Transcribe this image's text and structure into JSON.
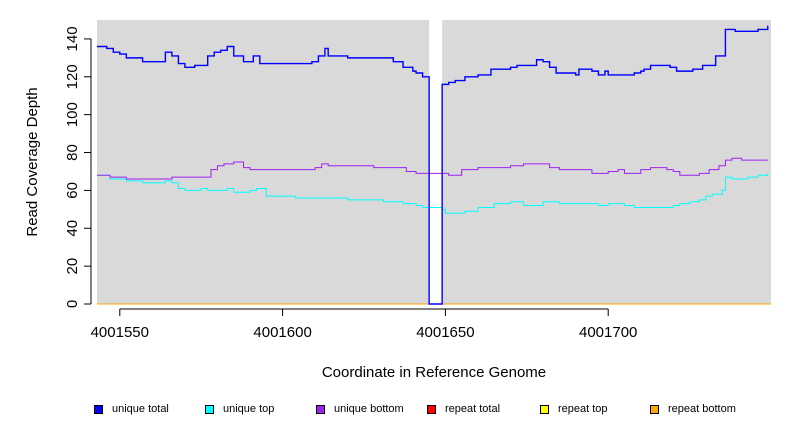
{
  "chart_data": {
    "type": "line",
    "title": "",
    "xlabel": "Coordinate in Reference Genome",
    "ylabel": "Read Coverage Depth",
    "xlim": [
      4001543,
      4001750
    ],
    "ylim": [
      0,
      150
    ],
    "xticks": [
      4001550,
      4001600,
      4001650,
      4001700
    ],
    "yticks": [
      0,
      20,
      40,
      60,
      80,
      100,
      120,
      140
    ],
    "grid": false,
    "background": "#d9d9d9",
    "legend_position": "bottom",
    "gap_region": [
      4001645,
      4001649
    ],
    "series": [
      {
        "name": "unique total",
        "color": "#0000ff",
        "points": [
          [
            4001543,
            136
          ],
          [
            4001546,
            135
          ],
          [
            4001548,
            133
          ],
          [
            4001550,
            132
          ],
          [
            4001552,
            130
          ],
          [
            4001557,
            128
          ],
          [
            4001564,
            133
          ],
          [
            4001566,
            131
          ],
          [
            4001568,
            127
          ],
          [
            4001570,
            125
          ],
          [
            4001573,
            126
          ],
          [
            4001577,
            131
          ],
          [
            4001579,
            133
          ],
          [
            4001581,
            134
          ],
          [
            4001583,
            136
          ],
          [
            4001585,
            131
          ],
          [
            4001588,
            128
          ],
          [
            4001591,
            131
          ],
          [
            4001593,
            127
          ],
          [
            4001604,
            127
          ],
          [
            4001609,
            128
          ],
          [
            4001611,
            131
          ],
          [
            4001613,
            135
          ],
          [
            4001614,
            131
          ],
          [
            4001620,
            130
          ],
          [
            4001624,
            130
          ],
          [
            4001634,
            128
          ],
          [
            4001637,
            125
          ],
          [
            4001640,
            123
          ],
          [
            4001641,
            122
          ],
          [
            4001643,
            120
          ],
          [
            4001645,
            120
          ],
          [
            4001645,
            0
          ],
          [
            4001649,
            0
          ],
          [
            4001649,
            116
          ],
          [
            4001651,
            117
          ],
          [
            4001653,
            118
          ],
          [
            4001656,
            120
          ],
          [
            4001660,
            121
          ],
          [
            4001664,
            124
          ],
          [
            4001670,
            125
          ],
          [
            4001672,
            126
          ],
          [
            4001678,
            129
          ],
          [
            4001680,
            128
          ],
          [
            4001682,
            125
          ],
          [
            4001684,
            122
          ],
          [
            4001690,
            121
          ],
          [
            4001691,
            124
          ],
          [
            4001695,
            123
          ],
          [
            4001697,
            121
          ],
          [
            4001699,
            123
          ],
          [
            4001700,
            121
          ],
          [
            4001708,
            122
          ],
          [
            4001710,
            123
          ],
          [
            4001711,
            124
          ],
          [
            4001713,
            126
          ],
          [
            4001719,
            125
          ],
          [
            4001721,
            123
          ],
          [
            4001726,
            124
          ],
          [
            4001729,
            126
          ],
          [
            4001733,
            131
          ],
          [
            4001736,
            145
          ],
          [
            4001739,
            144
          ],
          [
            4001746,
            145
          ],
          [
            4001749,
            147
          ]
        ]
      },
      {
        "name": "unique top",
        "color": "#00ffff",
        "points": [
          [
            4001543,
            68
          ],
          [
            4001547,
            66
          ],
          [
            4001550,
            66
          ],
          [
            4001552,
            65
          ],
          [
            4001557,
            64
          ],
          [
            4001564,
            65
          ],
          [
            4001566,
            64
          ],
          [
            4001568,
            61
          ],
          [
            4001570,
            60
          ],
          [
            4001575,
            61
          ],
          [
            4001577,
            60
          ],
          [
            4001583,
            61
          ],
          [
            4001585,
            59
          ],
          [
            4001590,
            60
          ],
          [
            4001592,
            61
          ],
          [
            4001595,
            57
          ],
          [
            4001600,
            57
          ],
          [
            4001604,
            56
          ],
          [
            4001609,
            56
          ],
          [
            4001615,
            56
          ],
          [
            4001620,
            55
          ],
          [
            4001627,
            55
          ],
          [
            4001631,
            54
          ],
          [
            4001637,
            53
          ],
          [
            4001641,
            52
          ],
          [
            4001643,
            51
          ],
          [
            4001645,
            51
          ],
          [
            4001649,
            50
          ],
          [
            4001650,
            48
          ],
          [
            4001653,
            48
          ],
          [
            4001656,
            49
          ],
          [
            4001660,
            51
          ],
          [
            4001665,
            53
          ],
          [
            4001670,
            54
          ],
          [
            4001674,
            52
          ],
          [
            4001677,
            52
          ],
          [
            4001680,
            54
          ],
          [
            4001682,
            54
          ],
          [
            4001685,
            53
          ],
          [
            4001690,
            53
          ],
          [
            4001695,
            53
          ],
          [
            4001697,
            52
          ],
          [
            4001700,
            53
          ],
          [
            4001705,
            52
          ],
          [
            4001708,
            51
          ],
          [
            4001712,
            51
          ],
          [
            4001715,
            51
          ],
          [
            4001720,
            52
          ],
          [
            4001722,
            53
          ],
          [
            4001725,
            54
          ],
          [
            4001728,
            55
          ],
          [
            4001730,
            57
          ],
          [
            4001732,
            58
          ],
          [
            4001735,
            60
          ],
          [
            4001736,
            67
          ],
          [
            4001738,
            66
          ],
          [
            4001743,
            67
          ],
          [
            4001746,
            68
          ],
          [
            4001749,
            69
          ]
        ]
      },
      {
        "name": "unique bottom",
        "color": "#a020f0",
        "points": [
          [
            4001543,
            68
          ],
          [
            4001547,
            67
          ],
          [
            4001549,
            67
          ],
          [
            4001552,
            66
          ],
          [
            4001557,
            66
          ],
          [
            4001564,
            66
          ],
          [
            4001566,
            67
          ],
          [
            4001570,
            67
          ],
          [
            4001578,
            71
          ],
          [
            4001580,
            73
          ],
          [
            4001582,
            74
          ],
          [
            4001585,
            75
          ],
          [
            4001588,
            72
          ],
          [
            4001590,
            71
          ],
          [
            4001595,
            71
          ],
          [
            4001600,
            71
          ],
          [
            4001608,
            71
          ],
          [
            4001610,
            72
          ],
          [
            4001612,
            74
          ],
          [
            4001614,
            73
          ],
          [
            4001621,
            73
          ],
          [
            4001628,
            72
          ],
          [
            4001634,
            72
          ],
          [
            4001638,
            70
          ],
          [
            4001641,
            69
          ],
          [
            4001643,
            69
          ],
          [
            4001645,
            69
          ],
          [
            4001649,
            69
          ],
          [
            4001651,
            68
          ],
          [
            4001655,
            71
          ],
          [
            4001660,
            72
          ],
          [
            4001665,
            72
          ],
          [
            4001670,
            73
          ],
          [
            4001674,
            74
          ],
          [
            4001680,
            74
          ],
          [
            4001682,
            72
          ],
          [
            4001685,
            71
          ],
          [
            4001690,
            71
          ],
          [
            4001692,
            71
          ],
          [
            4001695,
            69
          ],
          [
            4001700,
            70
          ],
          [
            4001703,
            71
          ],
          [
            4001705,
            69
          ],
          [
            4001710,
            71
          ],
          [
            4001713,
            72
          ],
          [
            4001716,
            72
          ],
          [
            4001718,
            71
          ],
          [
            4001720,
            70
          ],
          [
            4001722,
            68
          ],
          [
            4001725,
            68
          ],
          [
            4001728,
            69
          ],
          [
            4001731,
            71
          ],
          [
            4001734,
            73
          ],
          [
            4001736,
            76
          ],
          [
            4001738,
            77
          ],
          [
            4001741,
            76
          ],
          [
            4001749,
            76
          ]
        ]
      },
      {
        "name": "repeat total",
        "color": "#ff0000",
        "points": [
          [
            4001543,
            0
          ],
          [
            4001750,
            0
          ]
        ]
      },
      {
        "name": "repeat top",
        "color": "#ffff00",
        "points": [
          [
            4001543,
            0
          ],
          [
            4001750,
            0
          ]
        ]
      },
      {
        "name": "repeat bottom",
        "color": "#ffa500",
        "points": [
          [
            4001543,
            0
          ],
          [
            4001750,
            0
          ]
        ]
      }
    ]
  }
}
